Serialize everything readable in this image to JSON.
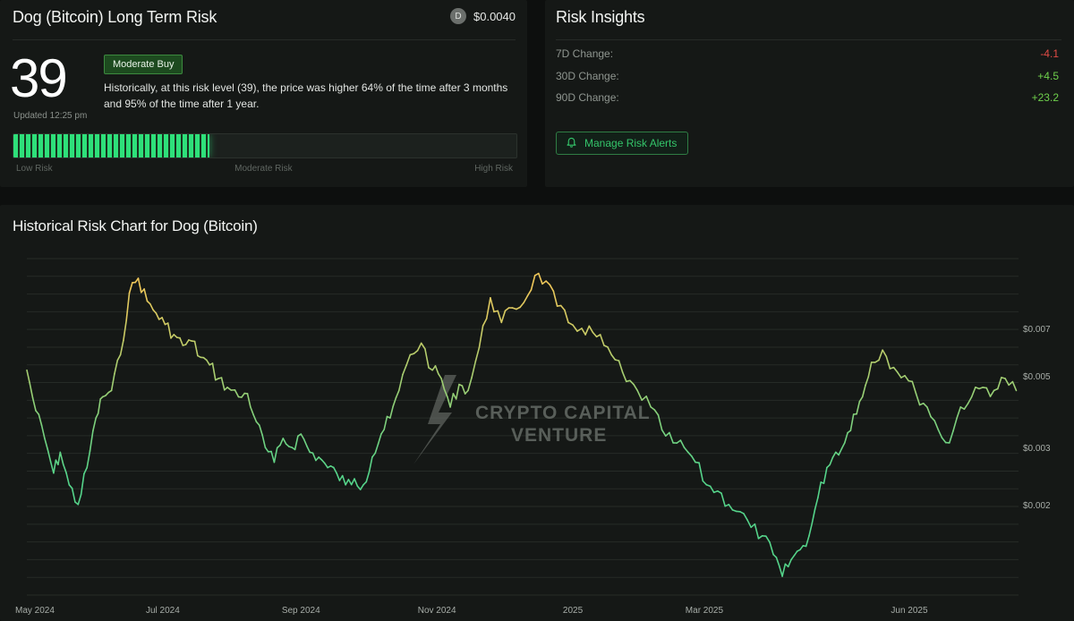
{
  "risk_card": {
    "title": "Dog (Bitcoin) Long Term Risk",
    "coin_avatar_letter": "D",
    "price": "$0.0040",
    "score": "39",
    "updated": "Updated 12:25 pm",
    "badge": "Moderate Buy",
    "description": "Historically, at this risk level (39), the price was higher 64% of the time after 3 months and 95% of the time after 1 year.",
    "risk_level_fraction": 0.39,
    "scale_labels": {
      "low": "Low Risk",
      "moderate": "Moderate Risk",
      "high": "High Risk"
    }
  },
  "insights": {
    "title": "Risk Insights",
    "rows": [
      {
        "label": "7D Change:",
        "value": "-4.1"
      },
      {
        "label": "30D Change:",
        "value": "+4.5"
      },
      {
        "label": "90D Change:",
        "value": "+23.2"
      }
    ],
    "alerts_button": "Manage Risk Alerts",
    "alerts_icon": "bell-icon"
  },
  "chart": {
    "title": "Historical Risk Chart for Dog (Bitcoin)",
    "watermark": {
      "line1": "CRYPTO CAPITAL",
      "line2": "VENTURE"
    }
  },
  "colors": {
    "accent_green": "#34c56a",
    "bar_green": "#2ee07a",
    "negative": "#e04b45",
    "positive": "#6fd04c",
    "line_low": "#55d48a",
    "line_high": "#f0c85a"
  },
  "chart_data": {
    "type": "line",
    "title": "Historical Risk Chart for Dog (Bitcoin)",
    "xlabel": "",
    "ylabel": "",
    "scale": "log",
    "x_ticks": [
      "May 2024",
      "Jul 2024",
      "Sep 2024",
      "Nov 2024",
      "2025",
      "Mar 2025",
      "Jun 2025"
    ],
    "y_ticks": [
      "$0.007",
      "$0.005",
      "$0.003",
      "$0.002"
    ],
    "y_tick_values": [
      0.007,
      0.005,
      0.003,
      0.002
    ],
    "ylim": [
      0.00105,
      0.0115
    ],
    "grid": true,
    "series": [
      {
        "color_scale": "green-to-yellow by value",
        "x": [
          "2024-05-01",
          "2024-05-05",
          "2024-05-09",
          "2024-05-13",
          "2024-05-16",
          "2024-05-20",
          "2024-05-24",
          "2024-05-28",
          "2024-06-01",
          "2024-06-04",
          "2024-06-08",
          "2024-06-12",
          "2024-06-16",
          "2024-06-20",
          "2024-06-24",
          "2024-06-28",
          "2024-07-02",
          "2024-07-06",
          "2024-07-10",
          "2024-07-14",
          "2024-07-18",
          "2024-07-22",
          "2024-07-26",
          "2024-07-30",
          "2024-08-04",
          "2024-08-08",
          "2024-08-12",
          "2024-08-16",
          "2024-08-20",
          "2024-08-24",
          "2024-08-28",
          "2024-09-01",
          "2024-09-05",
          "2024-09-09",
          "2024-09-13",
          "2024-09-17",
          "2024-09-21",
          "2024-09-25",
          "2024-09-29",
          "2024-10-03",
          "2024-10-07",
          "2024-10-11",
          "2024-10-15",
          "2024-10-20",
          "2024-10-25",
          "2024-10-30",
          "2024-11-03",
          "2024-11-07",
          "2024-11-11",
          "2024-11-15",
          "2024-11-20",
          "2024-11-25",
          "2024-11-30",
          "2024-12-05",
          "2024-12-10",
          "2024-12-15",
          "2024-12-20",
          "2024-12-25",
          "2024-12-30",
          "2025-01-05",
          "2025-01-10",
          "2025-01-15",
          "2025-01-20",
          "2025-01-25",
          "2025-01-30",
          "2025-02-05",
          "2025-02-10",
          "2025-02-15",
          "2025-02-20",
          "2025-02-25",
          "2025-03-02",
          "2025-03-07",
          "2025-03-12",
          "2025-03-17",
          "2025-03-22",
          "2025-03-27",
          "2025-04-01",
          "2025-04-05",
          "2025-04-09",
          "2025-04-13",
          "2025-04-17",
          "2025-04-21",
          "2025-04-25",
          "2025-04-29",
          "2025-05-03",
          "2025-05-07",
          "2025-05-11",
          "2025-05-15",
          "2025-05-20",
          "2025-05-25",
          "2025-05-30",
          "2025-06-04",
          "2025-06-09",
          "2025-06-14",
          "2025-06-19",
          "2025-06-24",
          "2025-06-29",
          "2025-07-04",
          "2025-07-09",
          "2025-07-14",
          "2025-07-19"
        ],
        "y": [
          0.0052,
          0.0039,
          0.0032,
          0.0025,
          0.0029,
          0.0023,
          0.002,
          0.0026,
          0.0037,
          0.0043,
          0.0045,
          0.0058,
          0.009,
          0.01,
          0.0085,
          0.0078,
          0.0072,
          0.0067,
          0.0062,
          0.0064,
          0.0057,
          0.0054,
          0.0049,
          0.0046,
          0.0043,
          0.0044,
          0.0036,
          0.003,
          0.0027,
          0.0032,
          0.003,
          0.0033,
          0.0029,
          0.0028,
          0.0026,
          0.0025,
          0.0023,
          0.0024,
          0.0023,
          0.0028,
          0.0033,
          0.0037,
          0.0045,
          0.0058,
          0.0063,
          0.0052,
          0.0049,
          0.004,
          0.0047,
          0.0045,
          0.0061,
          0.0087,
          0.0073,
          0.0081,
          0.0084,
          0.0102,
          0.0098,
          0.0082,
          0.0073,
          0.007,
          0.0068,
          0.0062,
          0.0056,
          0.0048,
          0.0045,
          0.004,
          0.0034,
          0.0031,
          0.003,
          0.0027,
          0.0023,
          0.0022,
          0.002,
          0.0019,
          0.0017,
          0.0016,
          0.0014,
          0.0012,
          0.00135,
          0.00145,
          0.0016,
          0.0021,
          0.0026,
          0.0029,
          0.0031,
          0.0038,
          0.0043,
          0.0055,
          0.006,
          0.0053,
          0.005,
          0.0044,
          0.004,
          0.0034,
          0.0031,
          0.004,
          0.0043,
          0.0046,
          0.0045,
          0.0049,
          0.0045
        ]
      }
    ]
  }
}
